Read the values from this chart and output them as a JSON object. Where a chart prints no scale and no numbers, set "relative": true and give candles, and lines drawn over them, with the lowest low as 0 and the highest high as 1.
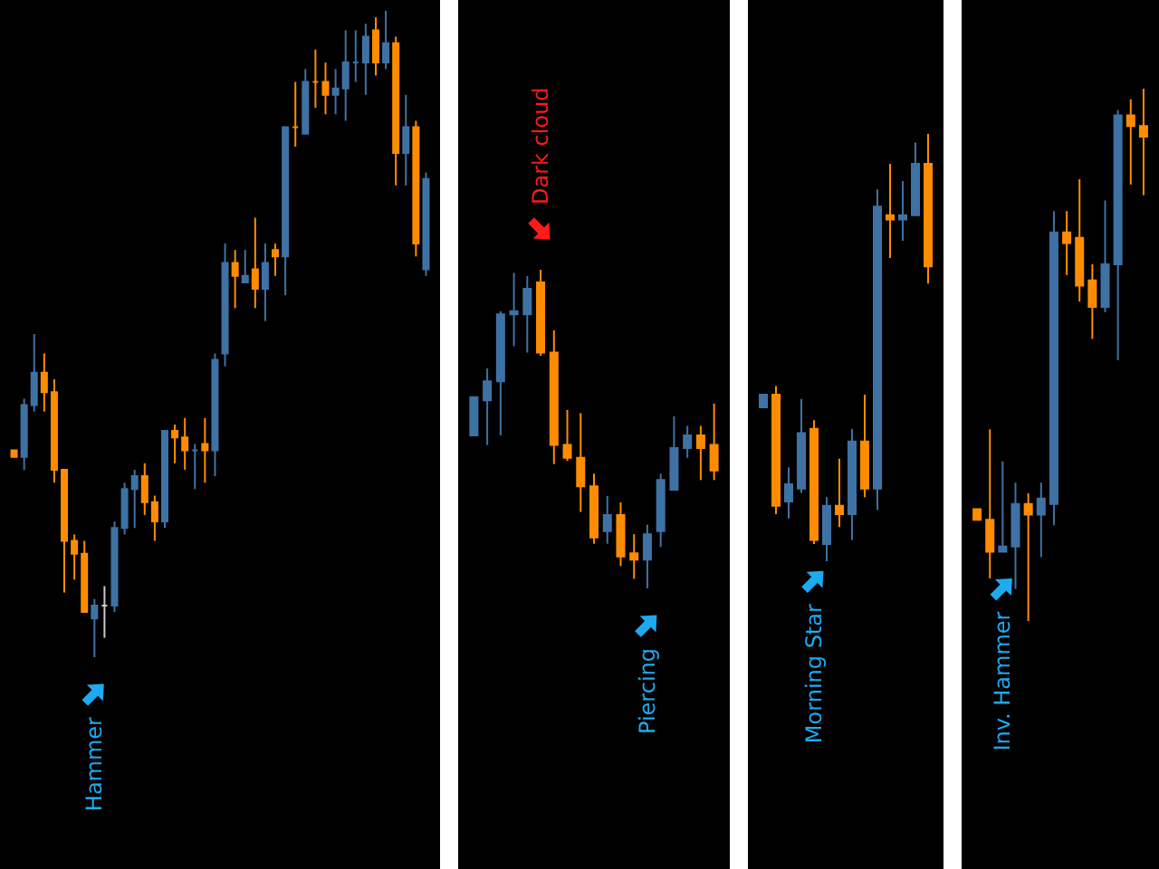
{
  "chart_data": [
    {
      "type": "candlestick",
      "relative": true,
      "categories": [
        null,
        null,
        null,
        null,
        null,
        null,
        null,
        null,
        null,
        null,
        null,
        null,
        null,
        null,
        null,
        null,
        null,
        null,
        null,
        null,
        null,
        null,
        null,
        null,
        null,
        null,
        null,
        null,
        null,
        null,
        null,
        null,
        null,
        null,
        null,
        null,
        null,
        null,
        null,
        null,
        null,
        null
      ],
      "ohlc": [
        [
          0.32,
          0.32,
          0.31,
          0.31
        ],
        [
          0.31,
          0.4,
          0.29,
          0.39
        ],
        [
          0.39,
          0.5,
          0.38,
          0.44
        ],
        [
          0.44,
          0.47,
          0.38,
          0.41
        ],
        [
          0.41,
          0.43,
          0.27,
          0.29
        ],
        [
          0.29,
          0.29,
          0.1,
          0.18
        ],
        [
          0.18,
          0.19,
          0.12,
          0.16
        ],
        [
          0.16,
          0.18,
          0.07,
          0.07
        ],
        [
          0.06,
          0.09,
          0,
          0.08
        ],
        [
          0.08,
          0.11,
          0.03,
          0.08
        ],
        [
          0.08,
          0.21,
          0.07,
          0.2
        ],
        [
          0.2,
          0.27,
          0.19,
          0.26
        ],
        [
          0.26,
          0.29,
          0.2,
          0.28
        ],
        [
          0.28,
          0.3,
          0.22,
          0.24
        ],
        [
          0.24,
          0.25,
          0.18,
          0.21
        ],
        [
          0.21,
          0.35,
          0.2,
          0.35
        ],
        [
          0.35,
          0.36,
          0.3,
          0.34
        ],
        [
          0.34,
          0.37,
          0.29,
          0.32
        ],
        [
          0.32,
          0.33,
          0.26,
          0.32
        ],
        [
          0.33,
          0.37,
          0.27,
          0.32
        ],
        [
          0.32,
          0.47,
          0.28,
          0.46
        ],
        [
          0.47,
          0.64,
          0.45,
          0.61
        ],
        [
          0.61,
          0.63,
          0.54,
          0.59
        ],
        [
          0.58,
          0.63,
          0.58,
          0.59
        ],
        [
          0.6,
          0.68,
          0.54,
          0.57
        ],
        [
          0.57,
          0.64,
          0.52,
          0.61
        ],
        [
          0.63,
          0.64,
          0.59,
          0.62
        ],
        [
          0.62,
          0.82,
          0.56,
          0.82
        ],
        [
          0.82,
          0.89,
          0.79,
          0.82
        ],
        [
          0.81,
          0.91,
          0.81,
          0.89
        ],
        [
          0.89,
          0.94,
          0.85,
          0.89
        ],
        [
          0.89,
          0.92,
          0.84,
          0.87
        ],
        [
          0.87,
          0.91,
          0.84,
          0.88
        ],
        [
          0.88,
          0.97,
          0.83,
          0.92
        ],
        [
          0.92,
          0.97,
          0.89,
          0.92
        ],
        [
          0.92,
          0.98,
          0.87,
          0.96
        ],
        [
          0.97,
          0.99,
          0.9,
          0.92
        ],
        [
          0.92,
          1,
          0.91,
          0.95
        ],
        [
          0.95,
          0.96,
          0.73,
          0.78
        ],
        [
          0.78,
          0.87,
          0.73,
          0.82
        ],
        [
          0.82,
          0.83,
          0.62,
          0.64
        ],
        [
          0.6,
          0.75,
          0.59,
          0.74
        ]
      ],
      "colors": [
        "#ff8c00",
        "#3f72a4",
        "#3f72a4",
        "#ff8c00",
        "#ff8c00",
        "#ff8c00",
        "#ff8c00",
        "#ff8c00",
        "#3f72a4",
        "#c8c8c8",
        "#3f72a4",
        "#3f72a4",
        "#3f72a4",
        "#ff8c00",
        "#ff8c00",
        "#3f72a4",
        "#ff8c00",
        "#ff8c00",
        "#3f72a4",
        "#ff8c00",
        "#3f72a4",
        "#3f72a4",
        "#ff8c00",
        "#3f72a4",
        "#ff8c00",
        "#3f72a4",
        "#ff8c00",
        "#3f72a4",
        "#ff8c00",
        "#3f72a4",
        "#ff8c00",
        "#ff8c00",
        "#3f72a4",
        "#3f72a4",
        "#3f72a4",
        "#3f72a4",
        "#ff8c00",
        "#3f72a4",
        "#ff8c00",
        "#3f72a4",
        "#ff8c00",
        "#3f72a4"
      ],
      "annotations": [
        {
          "text": "Hammer",
          "y": 0
        }
      ]
    },
    {
      "type": "candlestick",
      "relative": true,
      "categories": [
        null,
        null,
        null,
        null,
        null,
        null,
        null,
        null,
        null,
        null,
        null,
        null,
        null,
        null,
        null,
        null,
        null,
        null,
        null
      ],
      "ohlc": [
        [
          0.48,
          0.6,
          0.48,
          0.6
        ],
        [
          0.59,
          0.69,
          0.45,
          0.65
        ],
        [
          0.65,
          0.87,
          0.48,
          0.86
        ],
        [
          0.86,
          0.99,
          0.76,
          0.87
        ],
        [
          0.86,
          0.98,
          0.74,
          0.94
        ],
        [
          0.96,
          1,
          0.73,
          0.74
        ],
        [
          0.74,
          0.81,
          0.39,
          0.45
        ],
        [
          0.45,
          0.56,
          0.4,
          0.41
        ],
        [
          0.41,
          0.55,
          0.24,
          0.32
        ],
        [
          0.32,
          0.36,
          0.14,
          0.16
        ],
        [
          0.18,
          0.29,
          0.14,
          0.23
        ],
        [
          0.23,
          0.27,
          0.07,
          0.1
        ],
        [
          0.11,
          0.17,
          0.03,
          0.09
        ],
        [
          0.09,
          0.2,
          0,
          0.17
        ],
        [
          0.18,
          0.36,
          0.13,
          0.34
        ],
        [
          0.31,
          0.54,
          0.31,
          0.44
        ],
        [
          0.44,
          0.51,
          0.41,
          0.48
        ],
        [
          0.48,
          0.51,
          0.34,
          0.44
        ],
        [
          0.45,
          0.58,
          0.34,
          0.37
        ]
      ],
      "colors": [
        "#3f72a4",
        "#3f72a4",
        "#3f72a4",
        "#3f72a4",
        "#3f72a4",
        "#ff8c00",
        "#ff8c00",
        "#ff8c00",
        "#ff8c00",
        "#ff8c00",
        "#3f72a4",
        "#ff8c00",
        "#ff8c00",
        "#3f72a4",
        "#3f72a4",
        "#3f72a4",
        "#3f72a4",
        "#ff8c00",
        "#ff8c00"
      ],
      "annotations": [
        {
          "text": "Dark cloud",
          "y": 1
        },
        {
          "text": "Piercing",
          "y": 0
        }
      ]
    },
    {
      "type": "candlestick",
      "relative": true,
      "categories": [
        null,
        null,
        null,
        null,
        null,
        null,
        null,
        null,
        null,
        null,
        null,
        null,
        null,
        null
      ],
      "ohlc": [
        [
          0.36,
          0.39,
          0.36,
          0.39
        ],
        [
          0.39,
          0.41,
          0.11,
          0.13
        ],
        [
          0.14,
          0.22,
          0.1,
          0.18
        ],
        [
          0.17,
          0.38,
          0.16,
          0.3
        ],
        [
          0.31,
          0.33,
          0.04,
          0.05
        ],
        [
          0.04,
          0.15,
          0,
          0.13
        ],
        [
          0.13,
          0.24,
          0.08,
          0.11
        ],
        [
          0.11,
          0.31,
          0.05,
          0.28
        ],
        [
          0.28,
          0.39,
          0.15,
          0.17
        ],
        [
          0.17,
          0.87,
          0.12,
          0.83
        ],
        [
          0.81,
          0.93,
          0.71,
          0.8
        ],
        [
          0.8,
          0.89,
          0.75,
          0.81
        ],
        [
          0.81,
          0.98,
          0.81,
          0.93
        ],
        [
          0.93,
          1,
          0.65,
          0.69
        ]
      ],
      "colors": [
        "#3f72a4",
        "#ff8c00",
        "#3f72a4",
        "#3f72a4",
        "#ff8c00",
        "#3f72a4",
        "#ff8c00",
        "#3f72a4",
        "#ff8c00",
        "#3f72a4",
        "#ff8c00",
        "#3f72a4",
        "#3f72a4",
        "#ff8c00"
      ],
      "annotations": [
        {
          "text": "Morning Star",
          "y": 0.04
        }
      ]
    },
    {
      "type": "candlestick",
      "relative": true,
      "categories": [
        null,
        null,
        null,
        null,
        null,
        null,
        null,
        null,
        null,
        null,
        null,
        null,
        null,
        null
      ],
      "ohlc": [
        [
          0.21,
          0.21,
          0.19,
          0.19
        ],
        [
          0.19,
          0.36,
          0.08,
          0.13
        ],
        [
          0.13,
          0.3,
          0.13,
          0.14
        ],
        [
          0.14,
          0.26,
          0.06,
          0.22
        ],
        [
          0.22,
          0.24,
          0,
          0.2
        ],
        [
          0.2,
          0.26,
          0.12,
          0.23
        ],
        [
          0.22,
          0.77,
          0.18,
          0.73
        ],
        [
          0.73,
          0.77,
          0.65,
          0.71
        ],
        [
          0.72,
          0.83,
          0.6,
          0.63
        ],
        [
          0.64,
          0.67,
          0.53,
          0.59
        ],
        [
          0.59,
          0.79,
          0.58,
          0.67
        ],
        [
          0.67,
          0.96,
          0.49,
          0.95
        ],
        [
          0.95,
          0.98,
          0.82,
          0.93
        ],
        [
          0.93,
          1,
          0.8,
          0.91
        ]
      ],
      "colors": [
        "#ff8c00",
        "#ff8c00",
        "#3f72a4",
        "#3f72a4",
        "#ff8c00",
        "#3f72a4",
        "#3f72a4",
        "#ff8c00",
        "#ff8c00",
        "#ff8c00",
        "#3f72a4",
        "#3f72a4",
        "#ff8c00",
        "#ff8c00"
      ],
      "annotations": [
        {
          "text": "Inv. Hammer",
          "y": 0.13
        }
      ]
    }
  ]
}
